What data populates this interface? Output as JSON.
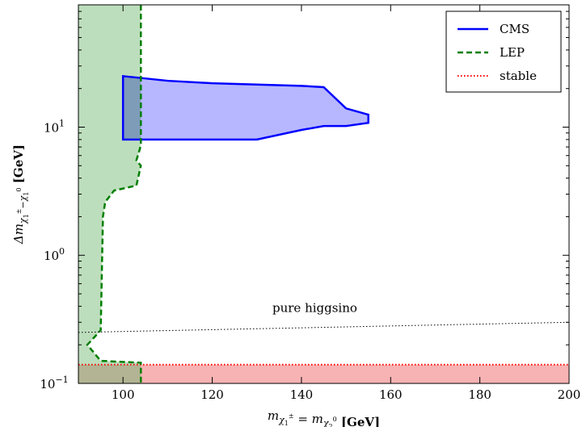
{
  "chart_data": {
    "type": "area",
    "xlabel": "m_{χ₁^±} = m_{χ₂^0} [GeV]",
    "ylabel": "Δm_{χ₁^±−χ₁^0} [GeV]",
    "xlim": [
      90,
      200
    ],
    "ylim": [
      0.1,
      90
    ],
    "yscale": "log",
    "x_ticks": [
      100,
      120,
      140,
      160,
      180,
      200
    ],
    "y_ticks": [
      {
        "value": 0.1,
        "base": "10",
        "exp": "−1"
      },
      {
        "value": 1,
        "base": "10",
        "exp": "0"
      },
      {
        "value": 10,
        "base": "10",
        "exp": "1"
      }
    ],
    "grid": false,
    "legend": {
      "placement": "top-right",
      "entries": [
        {
          "label": "CMS",
          "color": "#0000ff",
          "style": "solid"
        },
        {
          "label": "LEP",
          "color": "#007f00",
          "style": "dashed"
        },
        {
          "label": "stable",
          "color": "#ff0000",
          "style": "dotted"
        }
      ]
    },
    "series": [
      {
        "name": "CMS",
        "color": "#0000ff",
        "fill": "#b3b3ff",
        "polygon": [
          [
            100,
            25
          ],
          [
            110,
            23
          ],
          [
            120,
            22
          ],
          [
            140,
            21
          ],
          [
            145,
            20.5
          ],
          [
            150,
            14
          ],
          [
            155,
            12.5
          ],
          [
            155,
            10.8
          ],
          [
            150,
            10.2
          ],
          [
            145,
            10.2
          ],
          [
            140,
            9.5
          ],
          [
            130,
            8
          ],
          [
            100,
            8
          ]
        ]
      },
      {
        "name": "LEP",
        "color": "#007f00",
        "fill": "#b2d8b2",
        "boundary": [
          [
            104,
            90
          ],
          [
            104,
            7.5
          ],
          [
            103.8,
            6.8
          ],
          [
            103,
            5.5
          ],
          [
            104,
            5
          ],
          [
            103,
            3.5
          ],
          [
            98,
            3.2
          ],
          [
            96,
            2.6
          ],
          [
            95.5,
            2.0
          ],
          [
            95,
            0.26
          ],
          [
            92,
            0.2
          ],
          [
            95,
            0.15
          ],
          [
            104,
            0.145
          ],
          [
            104,
            0.1
          ]
        ]
      },
      {
        "name": "stable",
        "color": "#ff0000",
        "fill": "#f7b3b3",
        "y_max": 0.14
      }
    ],
    "reference_lines": [
      {
        "label": "pure higgsino",
        "color": "#000000",
        "style": "dotted",
        "points": [
          [
            90,
            0.25
          ],
          [
            200,
            0.3
          ]
        ]
      }
    ]
  }
}
